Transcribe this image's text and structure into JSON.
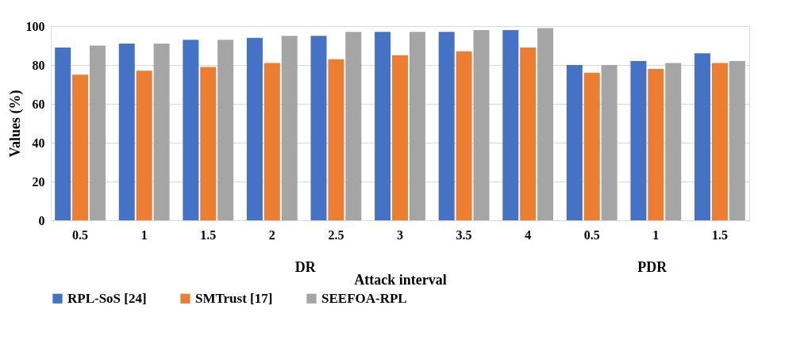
{
  "chart_data": {
    "type": "bar",
    "xlabel": "Attack interval",
    "ylabel": "Values (%)",
    "categories": [
      "0.5",
      "1",
      "1.5",
      "2",
      "2.5",
      "3",
      "3.5",
      "4",
      "0.5",
      "1",
      "1.5"
    ],
    "series": [
      {
        "name": "RPL-SoS [24]",
        "color": "#4472c4",
        "values": [
          89,
          91,
          93,
          94,
          95,
          97,
          97,
          98,
          80,
          82,
          86
        ]
      },
      {
        "name": "SMTrust [17]",
        "color": "#ed7d31",
        "values": [
          75,
          77,
          79,
          81,
          83,
          85,
          87,
          89,
          76,
          78,
          81
        ]
      },
      {
        "name": "SEEFOA-RPL",
        "color": "#a5a5a5",
        "values": [
          90,
          91,
          93,
          95,
          97,
          97,
          98,
          99,
          80,
          81,
          82
        ]
      }
    ],
    "annotations": [
      "DR",
      "PDR"
    ],
    "ylim": [
      0,
      100
    ],
    "yticks": [
      0,
      20,
      40,
      60,
      80,
      100
    ],
    "grid": "y",
    "legend": "bottom"
  }
}
